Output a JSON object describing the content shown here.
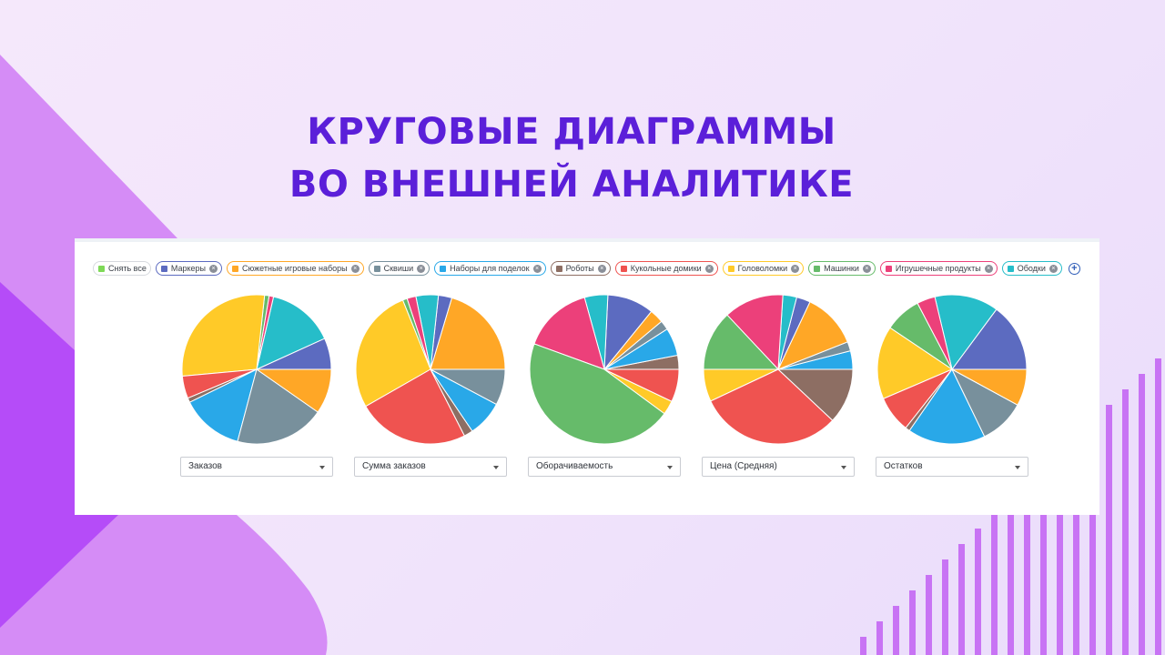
{
  "headline": {
    "line1": "КРУГОВЫЕ ДИАГРАММЫ",
    "line2": "ВО ВНЕШНЕЙ АНАЛИТИКЕ"
  },
  "filter": {
    "clear_all_label": "Снять все",
    "clear_all_color": "#7ed957",
    "add_icon": "plus-circle-icon",
    "remove_icon": "close-icon"
  },
  "chart_data": {
    "type": "pie",
    "categories": [
      {
        "name": "Маркеры",
        "color": "#5c6bc0"
      },
      {
        "name": "Сюжетные игровые наборы",
        "color": "#ffa726"
      },
      {
        "name": "Сквиши",
        "color": "#78909c"
      },
      {
        "name": "Наборы для поделок",
        "color": "#29a8e8"
      },
      {
        "name": "Роботы",
        "color": "#8d6e63"
      },
      {
        "name": "Кукольные домики",
        "color": "#ef5350"
      },
      {
        "name": "Головоломки",
        "color": "#ffca28"
      },
      {
        "name": "Машинки",
        "color": "#66bb6a"
      },
      {
        "name": "Игрушечные продукты",
        "color": "#ec407a"
      },
      {
        "name": "Ободки",
        "color": "#26bdc9"
      }
    ],
    "charts": [
      {
        "metric": "Заказов",
        "slices": [
          {
            "category": "Маркеры",
            "value": 7
          },
          {
            "category": "Ободки",
            "value": 15
          },
          {
            "category": "Игрушечные продукты",
            "value": 1
          },
          {
            "category": "Машинки",
            "value": 1
          },
          {
            "category": "Головоломки",
            "value": 29
          },
          {
            "category": "Кукольные домики",
            "value": 5
          },
          {
            "category": "Роботы",
            "value": 1
          },
          {
            "category": "Наборы для поделок",
            "value": 14
          },
          {
            "category": "Сквиши",
            "value": 20
          },
          {
            "category": "Сюжетные игровые наборы",
            "value": 10
          }
        ]
      },
      {
        "metric": "Сумма заказов",
        "slices": [
          {
            "category": "Сюжетные игровые наборы",
            "value": 21
          },
          {
            "category": "Маркеры",
            "value": 3
          },
          {
            "category": "Ободки",
            "value": 5
          },
          {
            "category": "Игрушечные продукты",
            "value": 2
          },
          {
            "category": "Машинки",
            "value": 1
          },
          {
            "category": "Головоломки",
            "value": 28
          },
          {
            "category": "Кукольные домики",
            "value": 25
          },
          {
            "category": "Роботы",
            "value": 2
          },
          {
            "category": "Наборы для поделок",
            "value": 8
          },
          {
            "category": "Сквиши",
            "value": 8
          }
        ]
      },
      {
        "metric": "Оборачиваемость",
        "slices": [
          {
            "category": "Роботы",
            "value": 3
          },
          {
            "category": "Наборы для поделок",
            "value": 6
          },
          {
            "category": "Сквиши",
            "value": 2
          },
          {
            "category": "Сюжетные игровые наборы",
            "value": 3
          },
          {
            "category": "Маркеры",
            "value": 10
          },
          {
            "category": "Ободки",
            "value": 5
          },
          {
            "category": "Игрушечные продукты",
            "value": 15
          },
          {
            "category": "Машинки",
            "value": 45
          },
          {
            "category": "Головоломки",
            "value": 3
          },
          {
            "category": "Кукольные домики",
            "value": 7
          }
        ]
      },
      {
        "metric": "Цена (Средняя)",
        "slices": [
          {
            "category": "Наборы для поделок",
            "value": 4
          },
          {
            "category": "Сквиши",
            "value": 2
          },
          {
            "category": "Сюжетные игровые наборы",
            "value": 12
          },
          {
            "category": "Маркеры",
            "value": 3
          },
          {
            "category": "Ободки",
            "value": 3
          },
          {
            "category": "Игрушечные продукты",
            "value": 13
          },
          {
            "category": "Машинки",
            "value": 13
          },
          {
            "category": "Головоломки",
            "value": 7
          },
          {
            "category": "Кукольные домики",
            "value": 31
          },
          {
            "category": "Роботы",
            "value": 12
          }
        ]
      },
      {
        "metric": "Остатков",
        "slices": [
          {
            "category": "Маркеры",
            "value": 15
          },
          {
            "category": "Ободки",
            "value": 14
          },
          {
            "category": "Игрушечные продукты",
            "value": 4
          },
          {
            "category": "Машинки",
            "value": 8
          },
          {
            "category": "Головоломки",
            "value": 16
          },
          {
            "category": "Кукольные домики",
            "value": 8
          },
          {
            "category": "Роботы",
            "value": 1
          },
          {
            "category": "Наборы для поделок",
            "value": 17
          },
          {
            "category": "Сквиши",
            "value": 10
          },
          {
            "category": "Сюжетные игровые наборы",
            "value": 8
          }
        ]
      }
    ]
  }
}
